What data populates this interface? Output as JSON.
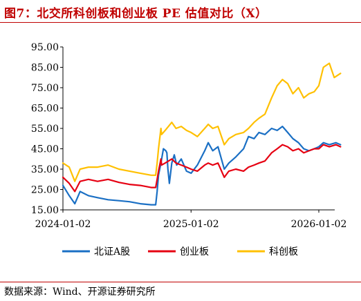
{
  "title": "图7：北交所科创板和创业板 PE 估值对比（X）",
  "source": "数据来源：Wind、开源证券研究所",
  "chart_data": {
    "type": "line",
    "ylim": [
      15,
      95
    ],
    "yticks": [
      "95.00",
      "85.00",
      "75.00",
      "65.00",
      "55.00",
      "45.00",
      "35.00",
      "25.00",
      "15.00"
    ],
    "xlim": [
      "2024-01-02",
      "2026-03-05"
    ],
    "xticks": [
      "2024-01-02",
      "2025-01-02",
      "2026-01-02"
    ],
    "grid": false,
    "legend_position": "bottom",
    "series": [
      {
        "name": "北证A股",
        "color": "#1a6fc4",
        "points": [
          [
            "2024-01-02",
            27
          ],
          [
            "2024-01-20",
            22
          ],
          [
            "2024-02-05",
            18
          ],
          [
            "2024-02-20",
            24
          ],
          [
            "2024-03-15",
            22
          ],
          [
            "2024-04-10",
            21
          ],
          [
            "2024-05-10",
            20
          ],
          [
            "2024-06-10",
            19.5
          ],
          [
            "2024-07-10",
            19
          ],
          [
            "2024-08-10",
            18
          ],
          [
            "2024-09-10",
            17.5
          ],
          [
            "2024-09-23",
            17.5
          ],
          [
            "2024-09-24",
            19
          ],
          [
            "2024-09-27",
            24
          ],
          [
            "2024-10-01",
            32
          ],
          [
            "2024-10-08",
            38
          ],
          [
            "2024-10-15",
            45
          ],
          [
            "2024-10-22",
            44
          ],
          [
            "2024-10-25",
            43
          ],
          [
            "2024-10-28",
            35
          ],
          [
            "2024-11-01",
            28
          ],
          [
            "2024-11-08",
            38
          ],
          [
            "2024-11-15",
            42
          ],
          [
            "2024-11-22",
            37
          ],
          [
            "2024-12-05",
            40
          ],
          [
            "2024-12-20",
            34
          ],
          [
            "2025-01-02",
            33
          ],
          [
            "2025-01-20",
            37
          ],
          [
            "2025-02-10",
            44
          ],
          [
            "2025-02-20",
            48
          ],
          [
            "2025-03-05",
            44
          ],
          [
            "2025-03-20",
            46
          ],
          [
            "2025-04-07",
            35
          ],
          [
            "2025-04-20",
            38
          ],
          [
            "2025-05-10",
            41
          ],
          [
            "2025-06-01",
            45
          ],
          [
            "2025-06-15",
            51
          ],
          [
            "2025-07-01",
            50
          ],
          [
            "2025-07-15",
            53
          ],
          [
            "2025-08-01",
            52
          ],
          [
            "2025-08-20",
            55
          ],
          [
            "2025-09-05",
            54
          ],
          [
            "2025-09-20",
            56
          ],
          [
            "2025-10-05",
            53
          ],
          [
            "2025-10-20",
            50
          ],
          [
            "2025-11-05",
            48
          ],
          [
            "2025-11-20",
            45
          ],
          [
            "2025-12-05",
            44
          ],
          [
            "2025-12-20",
            45
          ],
          [
            "2026-01-02",
            46
          ],
          [
            "2026-01-15",
            48
          ],
          [
            "2026-02-01",
            47
          ],
          [
            "2026-02-20",
            48
          ],
          [
            "2026-03-05",
            47
          ]
        ]
      },
      {
        "name": "创业板",
        "color": "#e60012",
        "points": [
          [
            "2024-01-02",
            31
          ],
          [
            "2024-01-20",
            28
          ],
          [
            "2024-02-05",
            24
          ],
          [
            "2024-02-20",
            29
          ],
          [
            "2024-03-15",
            30
          ],
          [
            "2024-04-10",
            29
          ],
          [
            "2024-05-10",
            30
          ],
          [
            "2024-06-10",
            28.5
          ],
          [
            "2024-07-10",
            27.5
          ],
          [
            "2024-08-10",
            27
          ],
          [
            "2024-09-10",
            26
          ],
          [
            "2024-09-23",
            26
          ],
          [
            "2024-09-27",
            30
          ],
          [
            "2024-10-01",
            34
          ],
          [
            "2024-10-08",
            40
          ],
          [
            "2024-10-10",
            37
          ],
          [
            "2024-10-20",
            38
          ],
          [
            "2024-11-08",
            40
          ],
          [
            "2024-11-20",
            38
          ],
          [
            "2024-12-05",
            37
          ],
          [
            "2024-12-20",
            36
          ],
          [
            "2025-01-02",
            35
          ],
          [
            "2025-01-20",
            34
          ],
          [
            "2025-02-10",
            37
          ],
          [
            "2025-02-20",
            38
          ],
          [
            "2025-03-05",
            37
          ],
          [
            "2025-03-20",
            38
          ],
          [
            "2025-04-07",
            31
          ],
          [
            "2025-04-20",
            34
          ],
          [
            "2025-05-10",
            35
          ],
          [
            "2025-06-01",
            34
          ],
          [
            "2025-06-15",
            36
          ],
          [
            "2025-07-01",
            37
          ],
          [
            "2025-07-15",
            38
          ],
          [
            "2025-08-01",
            39
          ],
          [
            "2025-08-20",
            43
          ],
          [
            "2025-09-05",
            45
          ],
          [
            "2025-09-20",
            47
          ],
          [
            "2025-10-05",
            46
          ],
          [
            "2025-10-20",
            44
          ],
          [
            "2025-11-05",
            45
          ],
          [
            "2025-11-20",
            43
          ],
          [
            "2025-12-05",
            44
          ],
          [
            "2025-12-20",
            45
          ],
          [
            "2026-01-02",
            45
          ],
          [
            "2026-01-15",
            47
          ],
          [
            "2026-02-01",
            46
          ],
          [
            "2026-02-20",
            47
          ],
          [
            "2026-03-05",
            46
          ]
        ]
      },
      {
        "name": "科创板",
        "color": "#ffc000",
        "points": [
          [
            "2024-01-02",
            38
          ],
          [
            "2024-01-20",
            36
          ],
          [
            "2024-02-05",
            29
          ],
          [
            "2024-02-20",
            35
          ],
          [
            "2024-03-15",
            36
          ],
          [
            "2024-04-10",
            36
          ],
          [
            "2024-05-10",
            37
          ],
          [
            "2024-06-10",
            35
          ],
          [
            "2024-07-10",
            34
          ],
          [
            "2024-08-10",
            33
          ],
          [
            "2024-09-10",
            32
          ],
          [
            "2024-09-23",
            32
          ],
          [
            "2024-09-27",
            38
          ],
          [
            "2024-10-01",
            45
          ],
          [
            "2024-10-08",
            55
          ],
          [
            "2024-10-10",
            52
          ],
          [
            "2024-10-20",
            54
          ],
          [
            "2024-11-08",
            58
          ],
          [
            "2024-11-20",
            55
          ],
          [
            "2024-12-05",
            56
          ],
          [
            "2024-12-20",
            54
          ],
          [
            "2025-01-02",
            53
          ],
          [
            "2025-01-20",
            51
          ],
          [
            "2025-02-10",
            55
          ],
          [
            "2025-02-20",
            57
          ],
          [
            "2025-03-05",
            55
          ],
          [
            "2025-03-20",
            56
          ],
          [
            "2025-04-07",
            47
          ],
          [
            "2025-04-20",
            50
          ],
          [
            "2025-05-10",
            52
          ],
          [
            "2025-06-01",
            53
          ],
          [
            "2025-06-15",
            55
          ],
          [
            "2025-07-01",
            58
          ],
          [
            "2025-07-15",
            60
          ],
          [
            "2025-08-01",
            62
          ],
          [
            "2025-08-20",
            70
          ],
          [
            "2025-09-05",
            76
          ],
          [
            "2025-09-20",
            79
          ],
          [
            "2025-10-05",
            77
          ],
          [
            "2025-10-20",
            72
          ],
          [
            "2025-11-05",
            75
          ],
          [
            "2025-11-20",
            70
          ],
          [
            "2025-12-05",
            72
          ],
          [
            "2025-12-20",
            73
          ],
          [
            "2026-01-02",
            76
          ],
          [
            "2026-01-15",
            85
          ],
          [
            "2026-02-01",
            87
          ],
          [
            "2026-02-15",
            80
          ],
          [
            "2026-03-05",
            82
          ]
        ]
      }
    ]
  }
}
